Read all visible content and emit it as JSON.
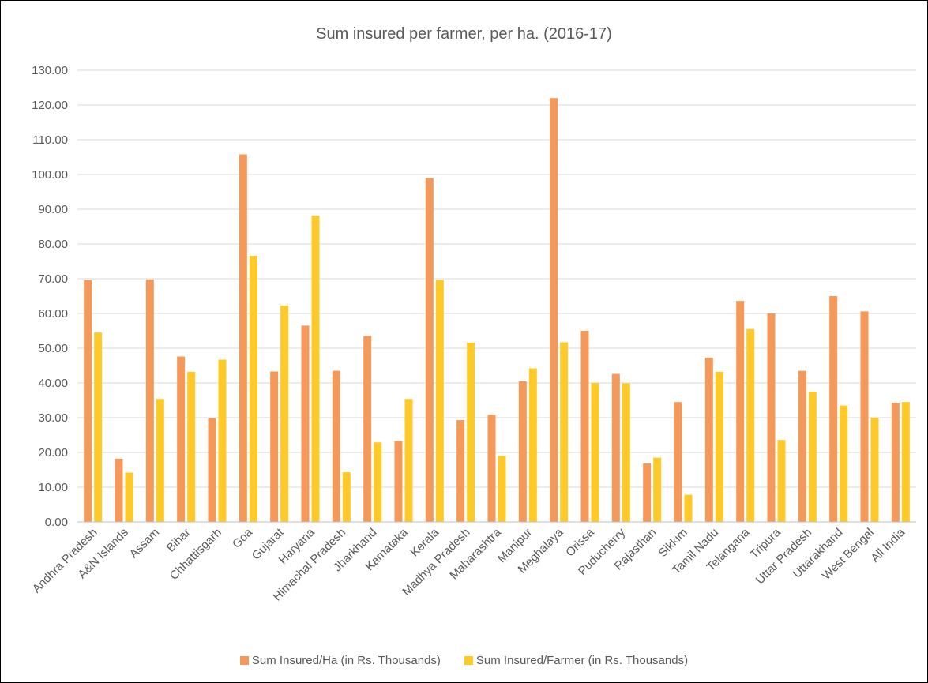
{
  "chart_data": {
    "type": "bar",
    "title": "Sum insured per farmer, per ha. (2016-17)",
    "xlabel": "",
    "ylabel": "",
    "ylim": [
      0,
      130
    ],
    "y_ticks": [
      "0.00",
      "10.00",
      "20.00",
      "30.00",
      "40.00",
      "50.00",
      "60.00",
      "70.00",
      "80.00",
      "90.00",
      "100.00",
      "110.00",
      "120.00",
      "130.00"
    ],
    "grid": true,
    "legend_position": "bottom",
    "categories": [
      "Andhra Pradesh",
      "A&N Islands",
      "Assam",
      "Bihar",
      "Chhattisgarh",
      "Goa",
      "Gujarat",
      "Haryana",
      "Himachal Pradesh",
      "Jharkhand",
      "Karnataka",
      "Kerala",
      "Madhya Pradesh",
      "Maharashtra",
      "Manipur",
      "Meghalaya",
      "Orissa",
      "Puducherry",
      "Rajasthan",
      "Sikkim",
      "Tamil Nadu",
      "Telangana",
      "Tripura",
      "Uttar Pradesh",
      "Uttarakhand",
      "West Bengal",
      "All India"
    ],
    "series": [
      {
        "name": "Sum Insured/Ha (in Rs. Thousands)",
        "color": "#F4995A",
        "values": [
          69.6,
          18.2,
          69.8,
          47.6,
          29.8,
          105.8,
          43.3,
          56.5,
          43.5,
          53.5,
          23.3,
          99.0,
          29.3,
          30.9,
          40.5,
          122.0,
          55.0,
          42.6,
          16.8,
          34.5,
          47.3,
          63.6,
          60.0,
          43.5,
          65.0,
          60.6,
          34.3
        ]
      },
      {
        "name": "Sum Insured/Farmer (in Rs. Thousands)",
        "color": "#FFCA28",
        "values": [
          54.5,
          14.2,
          35.4,
          43.2,
          46.7,
          76.6,
          62.3,
          88.2,
          14.3,
          22.9,
          35.4,
          69.6,
          51.6,
          19.0,
          44.2,
          51.7,
          40.0,
          39.9,
          18.5,
          7.8,
          43.2,
          55.5,
          23.6,
          37.5,
          33.5,
          30.0,
          34.5
        ]
      }
    ]
  }
}
